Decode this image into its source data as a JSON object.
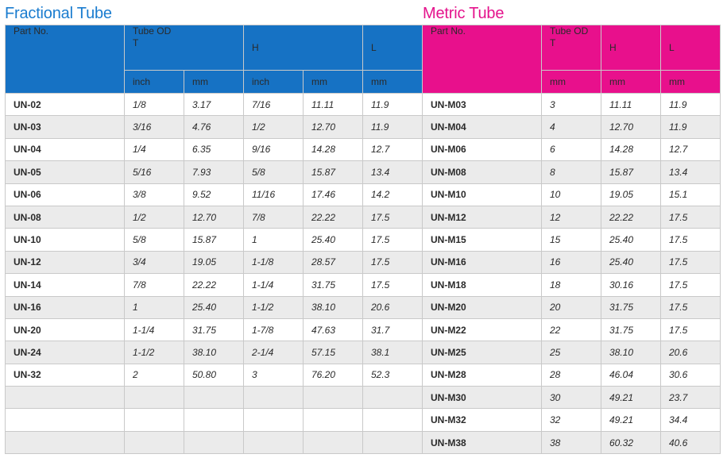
{
  "titles": {
    "fractional": "Fractional Tube",
    "metric": "Metric Tube"
  },
  "fractional": {
    "headers": {
      "part_no": "Part No.",
      "tube_od_line1": "Tube OD",
      "tube_od_line2": "T",
      "h": "H",
      "l": "L",
      "unit_inch": "inch",
      "unit_mm": "mm"
    },
    "rows": [
      {
        "part": "UN-02",
        "t_in": "1/8",
        "t_mm": "3.17",
        "h_in": "7/16",
        "h_mm": "11.11",
        "l": "11.9"
      },
      {
        "part": "UN-03",
        "t_in": "3/16",
        "t_mm": "4.76",
        "h_in": "1/2",
        "h_mm": "12.70",
        "l": "11.9"
      },
      {
        "part": "UN-04",
        "t_in": "1/4",
        "t_mm": "6.35",
        "h_in": "9/16",
        "h_mm": "14.28",
        "l": "12.7"
      },
      {
        "part": "UN-05",
        "t_in": "5/16",
        "t_mm": "7.93",
        "h_in": "5/8",
        "h_mm": "15.87",
        "l": "13.4"
      },
      {
        "part": "UN-06",
        "t_in": "3/8",
        "t_mm": "9.52",
        "h_in": "11/16",
        "h_mm": "17.46",
        "l": "14.2"
      },
      {
        "part": "UN-08",
        "t_in": "1/2",
        "t_mm": "12.70",
        "h_in": "7/8",
        "h_mm": "22.22",
        "l": "17.5"
      },
      {
        "part": "UN-10",
        "t_in": "5/8",
        "t_mm": "15.87",
        "h_in": "1",
        "h_mm": "25.40",
        "l": "17.5"
      },
      {
        "part": "UN-12",
        "t_in": "3/4",
        "t_mm": "19.05",
        "h_in": "1-1/8",
        "h_mm": "28.57",
        "l": "17.5"
      },
      {
        "part": "UN-14",
        "t_in": "7/8",
        "t_mm": "22.22",
        "h_in": "1-1/4",
        "h_mm": "31.75",
        "l": "17.5"
      },
      {
        "part": "UN-16",
        "t_in": "1",
        "t_mm": "25.40",
        "h_in": "1-1/2",
        "h_mm": "38.10",
        "l": "20.6"
      },
      {
        "part": "UN-20",
        "t_in": "1-1/4",
        "t_mm": "31.75",
        "h_in": "1-7/8",
        "h_mm": "47.63",
        "l": "31.7"
      },
      {
        "part": "UN-24",
        "t_in": "1-1/2",
        "t_mm": "38.10",
        "h_in": "2-1/4",
        "h_mm": "57.15",
        "l": "38.1"
      },
      {
        "part": "UN-32",
        "t_in": "2",
        "t_mm": "50.80",
        "h_in": "3",
        "h_mm": "76.20",
        "l": "52.3"
      },
      {
        "part": "",
        "t_in": "",
        "t_mm": "",
        "h_in": "",
        "h_mm": "",
        "l": ""
      },
      {
        "part": "",
        "t_in": "",
        "t_mm": "",
        "h_in": "",
        "h_mm": "",
        "l": ""
      },
      {
        "part": "",
        "t_in": "",
        "t_mm": "",
        "h_in": "",
        "h_mm": "",
        "l": ""
      }
    ]
  },
  "metric": {
    "headers": {
      "part_no": "Part No.",
      "tube_od_line1": "Tube OD",
      "tube_od_line2": "T",
      "h": "H",
      "l": "L",
      "unit_mm": "mm"
    },
    "rows": [
      {
        "part": "UN-M03",
        "t": "3",
        "h": "11.11",
        "l": "11.9"
      },
      {
        "part": "UN-M04",
        "t": "4",
        "h": "12.70",
        "l": "11.9"
      },
      {
        "part": "UN-M06",
        "t": "6",
        "h": "14.28",
        "l": "12.7"
      },
      {
        "part": "UN-M08",
        "t": "8",
        "h": "15.87",
        "l": "13.4"
      },
      {
        "part": "UN-M10",
        "t": "10",
        "h": "19.05",
        "l": "15.1"
      },
      {
        "part": "UN-M12",
        "t": "12",
        "h": "22.22",
        "l": "17.5"
      },
      {
        "part": "UN-M15",
        "t": "15",
        "h": "25.40",
        "l": "17.5"
      },
      {
        "part": "UN-M16",
        "t": "16",
        "h": "25.40",
        "l": "17.5"
      },
      {
        "part": "UN-M18",
        "t": "18",
        "h": "30.16",
        "l": "17.5"
      },
      {
        "part": "UN-M20",
        "t": "20",
        "h": "31.75",
        "l": "17.5"
      },
      {
        "part": "UN-M22",
        "t": "22",
        "h": "31.75",
        "l": "17.5"
      },
      {
        "part": "UN-M25",
        "t": "25",
        "h": "38.10",
        "l": "20.6"
      },
      {
        "part": "UN-M28",
        "t": "28",
        "h": "46.04",
        "l": "30.6"
      },
      {
        "part": "UN-M30",
        "t": "30",
        "h": "49.21",
        "l": "23.7"
      },
      {
        "part": "UN-M32",
        "t": "32",
        "h": "49.21",
        "l": "34.4"
      },
      {
        "part": "UN-M38",
        "t": "38",
        "h": "60.32",
        "l": "40.6"
      }
    ]
  },
  "colors": {
    "fractional_header": "#1672c4",
    "metric_header": "#e8108c",
    "fractional_title": "#1a7ccf",
    "metric_title": "#e4138c",
    "stripe": "#ebebeb"
  }
}
